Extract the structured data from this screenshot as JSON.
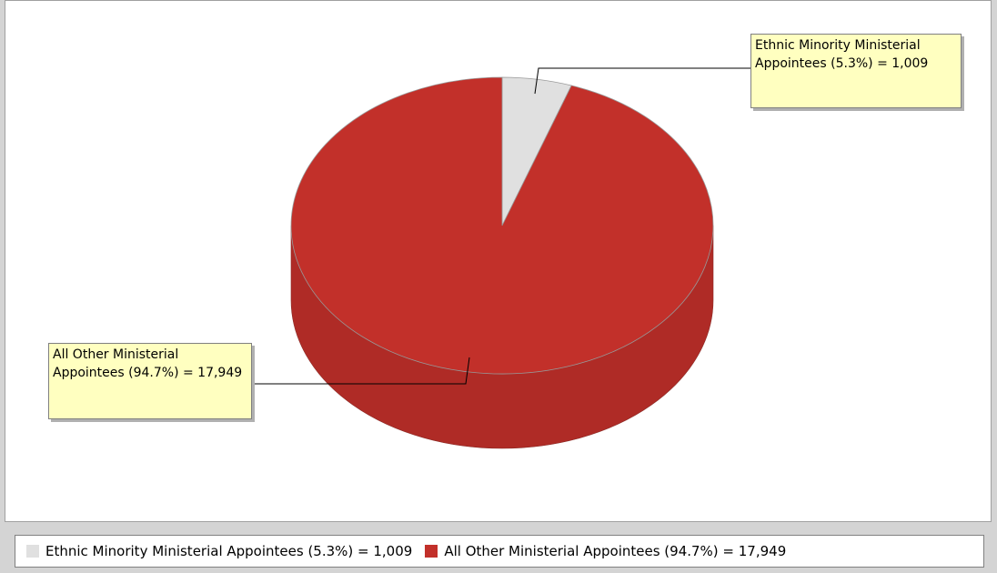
{
  "chart_data": {
    "type": "pie3d",
    "values": [
      1009,
      17949
    ],
    "value_labels": [
      "Ethnic Minority Ministerial Appointees (5.3%) = 1,009",
      "All Other Ministerial Appointees (94.7%) = 17,949"
    ],
    "colors": [
      "#e0e0e0",
      "#c2302a"
    ],
    "legend": "bottom"
  }
}
